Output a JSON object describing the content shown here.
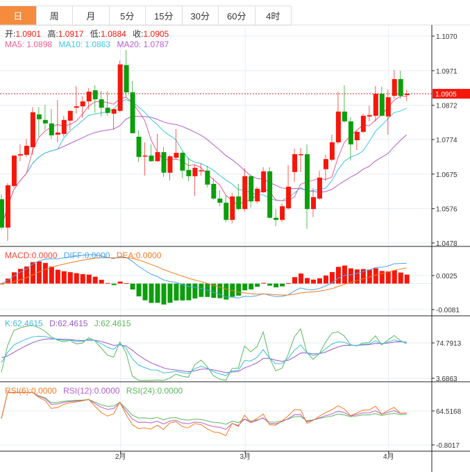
{
  "tabs": [
    {
      "label": "日",
      "active": true
    },
    {
      "label": "周"
    },
    {
      "label": "月"
    },
    {
      "label": "5分"
    },
    {
      "label": "15分"
    },
    {
      "label": "30分"
    },
    {
      "label": "60分"
    },
    {
      "label": "4时"
    }
  ],
  "colors": {
    "up": "#f5170b",
    "down": "#0c9e0c",
    "ma5": "#ec5d8e",
    "ma10": "#3cc6de",
    "ma20": "#b45ccc",
    "diff": "#4aa3f0",
    "dea": "#f57a20",
    "k": "#3cbddc",
    "d": "#9b59c8",
    "j": "#5bb85b",
    "rsi6": "#f57a20",
    "rsi12": "#b45ccc",
    "rsi24": "#5bb85b",
    "accent": "#f58b3c"
  },
  "ohlc_legend": {
    "open_label": "开:",
    "open": "1.0901",
    "high_label": "高:",
    "high": "1.0917",
    "low_label": "低:",
    "low": "1.0884",
    "close_label": "收:",
    "close": "1.0905"
  },
  "ma_legend": {
    "ma5": "MA5: 1.0898",
    "ma10": "MA10: 1.0863",
    "ma20": "MA20: 1.0787"
  },
  "macd_legend": {
    "macd": "MACD:0.0000",
    "diff": "DIFF:0.0000",
    "dea": "DEA:0.0000"
  },
  "kdj_legend": {
    "k": "K:62.4615",
    "d": "D:62.4615",
    "j": "J:62.4615"
  },
  "rsi_legend": {
    "rsi6": "RSI(6):0.0000",
    "rsi12": "RSI(12):0.0000",
    "rsi24": "RSI(24):0.0000"
  },
  "chart_data": {
    "type": "candlestick",
    "price_axis": {
      "ticks": [
        "1.1070",
        "1.0971",
        "1.0872",
        "1.0774",
        "1.0675",
        "1.0576",
        "1.0478"
      ],
      "range": [
        1.0478,
        1.107
      ]
    },
    "current_price": "1.0905",
    "x_ticks": [
      {
        "label": "2月",
        "index": 19
      },
      {
        "label": "3月",
        "index": 39
      },
      {
        "label": "4月",
        "index": 62
      }
    ],
    "candles": [
      [
        1.0603,
        1.0617,
        1.0516,
        1.0522
      ],
      [
        1.0522,
        1.0649,
        1.0484,
        1.0643
      ],
      [
        1.0641,
        1.0728,
        1.0637,
        1.0728
      ],
      [
        1.0728,
        1.076,
        1.0712,
        1.0732
      ],
      [
        1.073,
        1.0776,
        1.0724,
        1.0756
      ],
      [
        1.0752,
        1.0867,
        1.073,
        1.0852
      ],
      [
        1.0846,
        1.0867,
        1.0782,
        1.0832
      ],
      [
        1.083,
        1.0873,
        1.0802,
        1.082
      ],
      [
        1.082,
        1.0861,
        1.0776,
        1.0786
      ],
      [
        1.0788,
        1.0887,
        1.0766,
        1.0794
      ],
      [
        1.079,
        1.0842,
        1.0782,
        1.083
      ],
      [
        1.0828,
        1.0857,
        1.0802,
        1.0856
      ],
      [
        1.0865,
        1.0927,
        1.0848,
        1.0869
      ],
      [
        1.0869,
        1.0897,
        1.0836,
        1.0883
      ],
      [
        1.0883,
        1.0921,
        1.0859,
        1.0911
      ],
      [
        1.0915,
        1.0929,
        1.085,
        1.0889
      ],
      [
        1.0889,
        1.0913,
        1.084,
        1.0865
      ],
      [
        1.0865,
        1.0913,
        1.0842,
        1.085
      ],
      [
        1.0848,
        1.0863,
        1.0802,
        1.0861
      ],
      [
        1.0856,
        1.1,
        1.0852,
        1.0989
      ],
      [
        1.0987,
        1.103,
        1.0895,
        1.0909
      ],
      [
        1.0909,
        1.0941,
        1.0792,
        1.0792
      ],
      [
        1.0782,
        1.08,
        1.071,
        1.0724
      ],
      [
        1.0726,
        1.0766,
        1.0671,
        1.0728
      ],
      [
        1.0728,
        1.076,
        1.071,
        1.0712
      ],
      [
        1.0712,
        1.079,
        1.071,
        1.0738
      ],
      [
        1.0738,
        1.0752,
        1.0667,
        1.0679
      ],
      [
        1.0679,
        1.073,
        1.0657,
        1.0726
      ],
      [
        1.0722,
        1.0804,
        1.0716,
        1.0736
      ],
      [
        1.0736,
        1.074,
        1.0663,
        1.0685
      ],
      [
        1.0687,
        1.0722,
        1.0655,
        1.0669
      ],
      [
        1.0669,
        1.0703,
        1.0613,
        1.0693
      ],
      [
        1.0685,
        1.0706,
        1.0671,
        1.0686
      ],
      [
        1.0685,
        1.0699,
        1.0637,
        1.0645
      ],
      [
        1.0647,
        1.0663,
        1.0601,
        1.0605
      ],
      [
        1.0605,
        1.0629,
        1.0583,
        1.0593
      ],
      [
        1.0593,
        1.0615,
        1.0538,
        1.0544
      ],
      [
        1.0544,
        1.0621,
        1.0534,
        1.0611
      ],
      [
        1.0611,
        1.0647,
        1.0571,
        1.0575
      ],
      [
        1.0575,
        1.0691,
        1.0568,
        1.0669
      ],
      [
        1.0669,
        1.0671,
        1.0579,
        1.0597
      ],
      [
        1.0597,
        1.0639,
        1.0591,
        1.0633
      ],
      [
        1.0623,
        1.0695,
        1.0621,
        1.0683
      ],
      [
        1.0683,
        1.0695,
        1.0548,
        1.055
      ],
      [
        1.055,
        1.0575,
        1.0526,
        1.0544
      ],
      [
        1.0544,
        1.0591,
        1.0538,
        1.0583
      ],
      [
        1.0577,
        1.0701,
        1.0573,
        1.0639
      ],
      [
        1.0681,
        1.0748,
        1.0653,
        1.0732
      ],
      [
        1.073,
        1.075,
        1.0681,
        1.0732
      ],
      [
        1.0732,
        1.076,
        1.0518,
        1.0575
      ],
      [
        1.0575,
        1.0635,
        1.0552,
        1.0609
      ],
      [
        1.0605,
        1.0685,
        1.0601,
        1.0665
      ],
      [
        1.0689,
        1.073,
        1.0655,
        1.0718
      ],
      [
        1.0716,
        1.0788,
        1.0712,
        1.0766
      ],
      [
        1.0766,
        1.0911,
        1.076,
        1.0854
      ],
      [
        1.0854,
        1.0929,
        1.0822,
        1.0826
      ],
      [
        1.0826,
        1.0838,
        1.0714,
        1.076
      ],
      [
        1.0772,
        1.08,
        1.0744,
        1.0796
      ],
      [
        1.0796,
        1.0848,
        1.0792,
        1.0842
      ],
      [
        1.084,
        1.0871,
        1.0826,
        1.0844
      ],
      [
        1.0842,
        1.0927,
        1.0826,
        1.0905
      ],
      [
        1.0905,
        1.0925,
        1.084,
        1.0842
      ],
      [
        1.084,
        1.0917,
        1.0788,
        1.0895
      ],
      [
        1.0899,
        1.0973,
        1.0891,
        1.0947
      ],
      [
        1.0947,
        1.0971,
        1.0891,
        1.0899
      ],
      [
        1.0901,
        1.0917,
        1.0884,
        1.0905
      ]
    ],
    "macd_axis": {
      "ticks": [
        "0.0025",
        "-0.0081"
      ],
      "values": [
        0.0025,
        -0.0081
      ]
    },
    "kdj_axis": {
      "ticks": [
        "74.7913",
        "3.6863"
      ],
      "values": [
        74.7913,
        3.6863
      ]
    },
    "rsi_axis": {
      "ticks": [
        "64.5168",
        "-0.8017"
      ],
      "values": [
        64.5168,
        -0.8017
      ]
    }
  }
}
